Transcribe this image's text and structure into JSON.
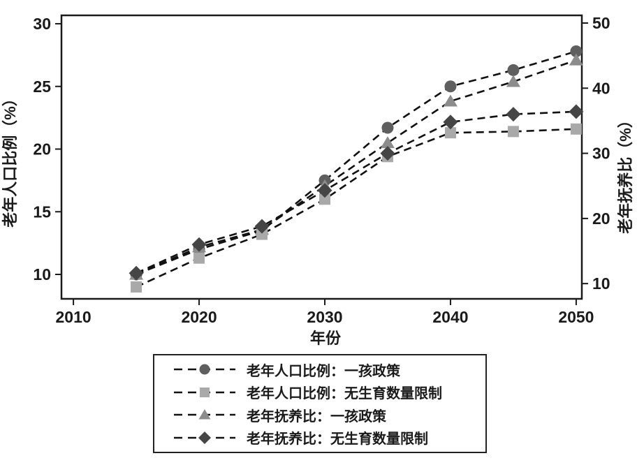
{
  "chart_data": {
    "type": "line",
    "title": "",
    "xlabel": "年份",
    "ylabel_left": "老年人口比例（%）",
    "ylabel_right": "老年抚养比（%）",
    "x": [
      2015,
      2020,
      2025,
      2030,
      2035,
      2040,
      2045,
      2050
    ],
    "x_ticks": [
      2010,
      2020,
      2030,
      2040,
      2050
    ],
    "left_ticks": [
      10,
      15,
      20,
      25,
      30
    ],
    "right_ticks": [
      10,
      20,
      30,
      40,
      50
    ],
    "xlim": [
      2009.05,
      2050.45
    ],
    "left_ylim": [
      8.05,
      30.67
    ],
    "right_ylim": [
      7.66,
      51.18
    ],
    "grid": false,
    "legend_position": "bottom",
    "line_style": "black dashed",
    "line_color": "#111111",
    "series": [
      {
        "name": "老年人口比例：一孩政策",
        "axis": "left",
        "marker": "circle",
        "color": "#5f5f5f",
        "values": [
          10.0,
          12.0,
          13.5,
          17.5,
          21.7,
          25.0,
          26.3,
          27.8
        ]
      },
      {
        "name": "老年人口比例：无生育数量限制",
        "axis": "left",
        "marker": "square",
        "color": "#a9a9a9",
        "values": [
          9.0,
          11.3,
          13.2,
          16.0,
          19.4,
          21.3,
          21.4,
          21.6
        ]
      },
      {
        "name": "老年抚养比：一孩政策",
        "axis": "right",
        "marker": "triangle",
        "color": "#8c8c8c",
        "values": [
          11.4,
          15.6,
          18.3,
          25.0,
          31.6,
          38.0,
          41.0,
          44.3
        ]
      },
      {
        "name": "老年抚养比：无生育数量限制",
        "axis": "right",
        "marker": "diamond",
        "color": "#454545",
        "values": [
          11.6,
          16.0,
          18.8,
          24.3,
          30.0,
          34.8,
          36.0,
          36.4
        ]
      }
    ]
  }
}
